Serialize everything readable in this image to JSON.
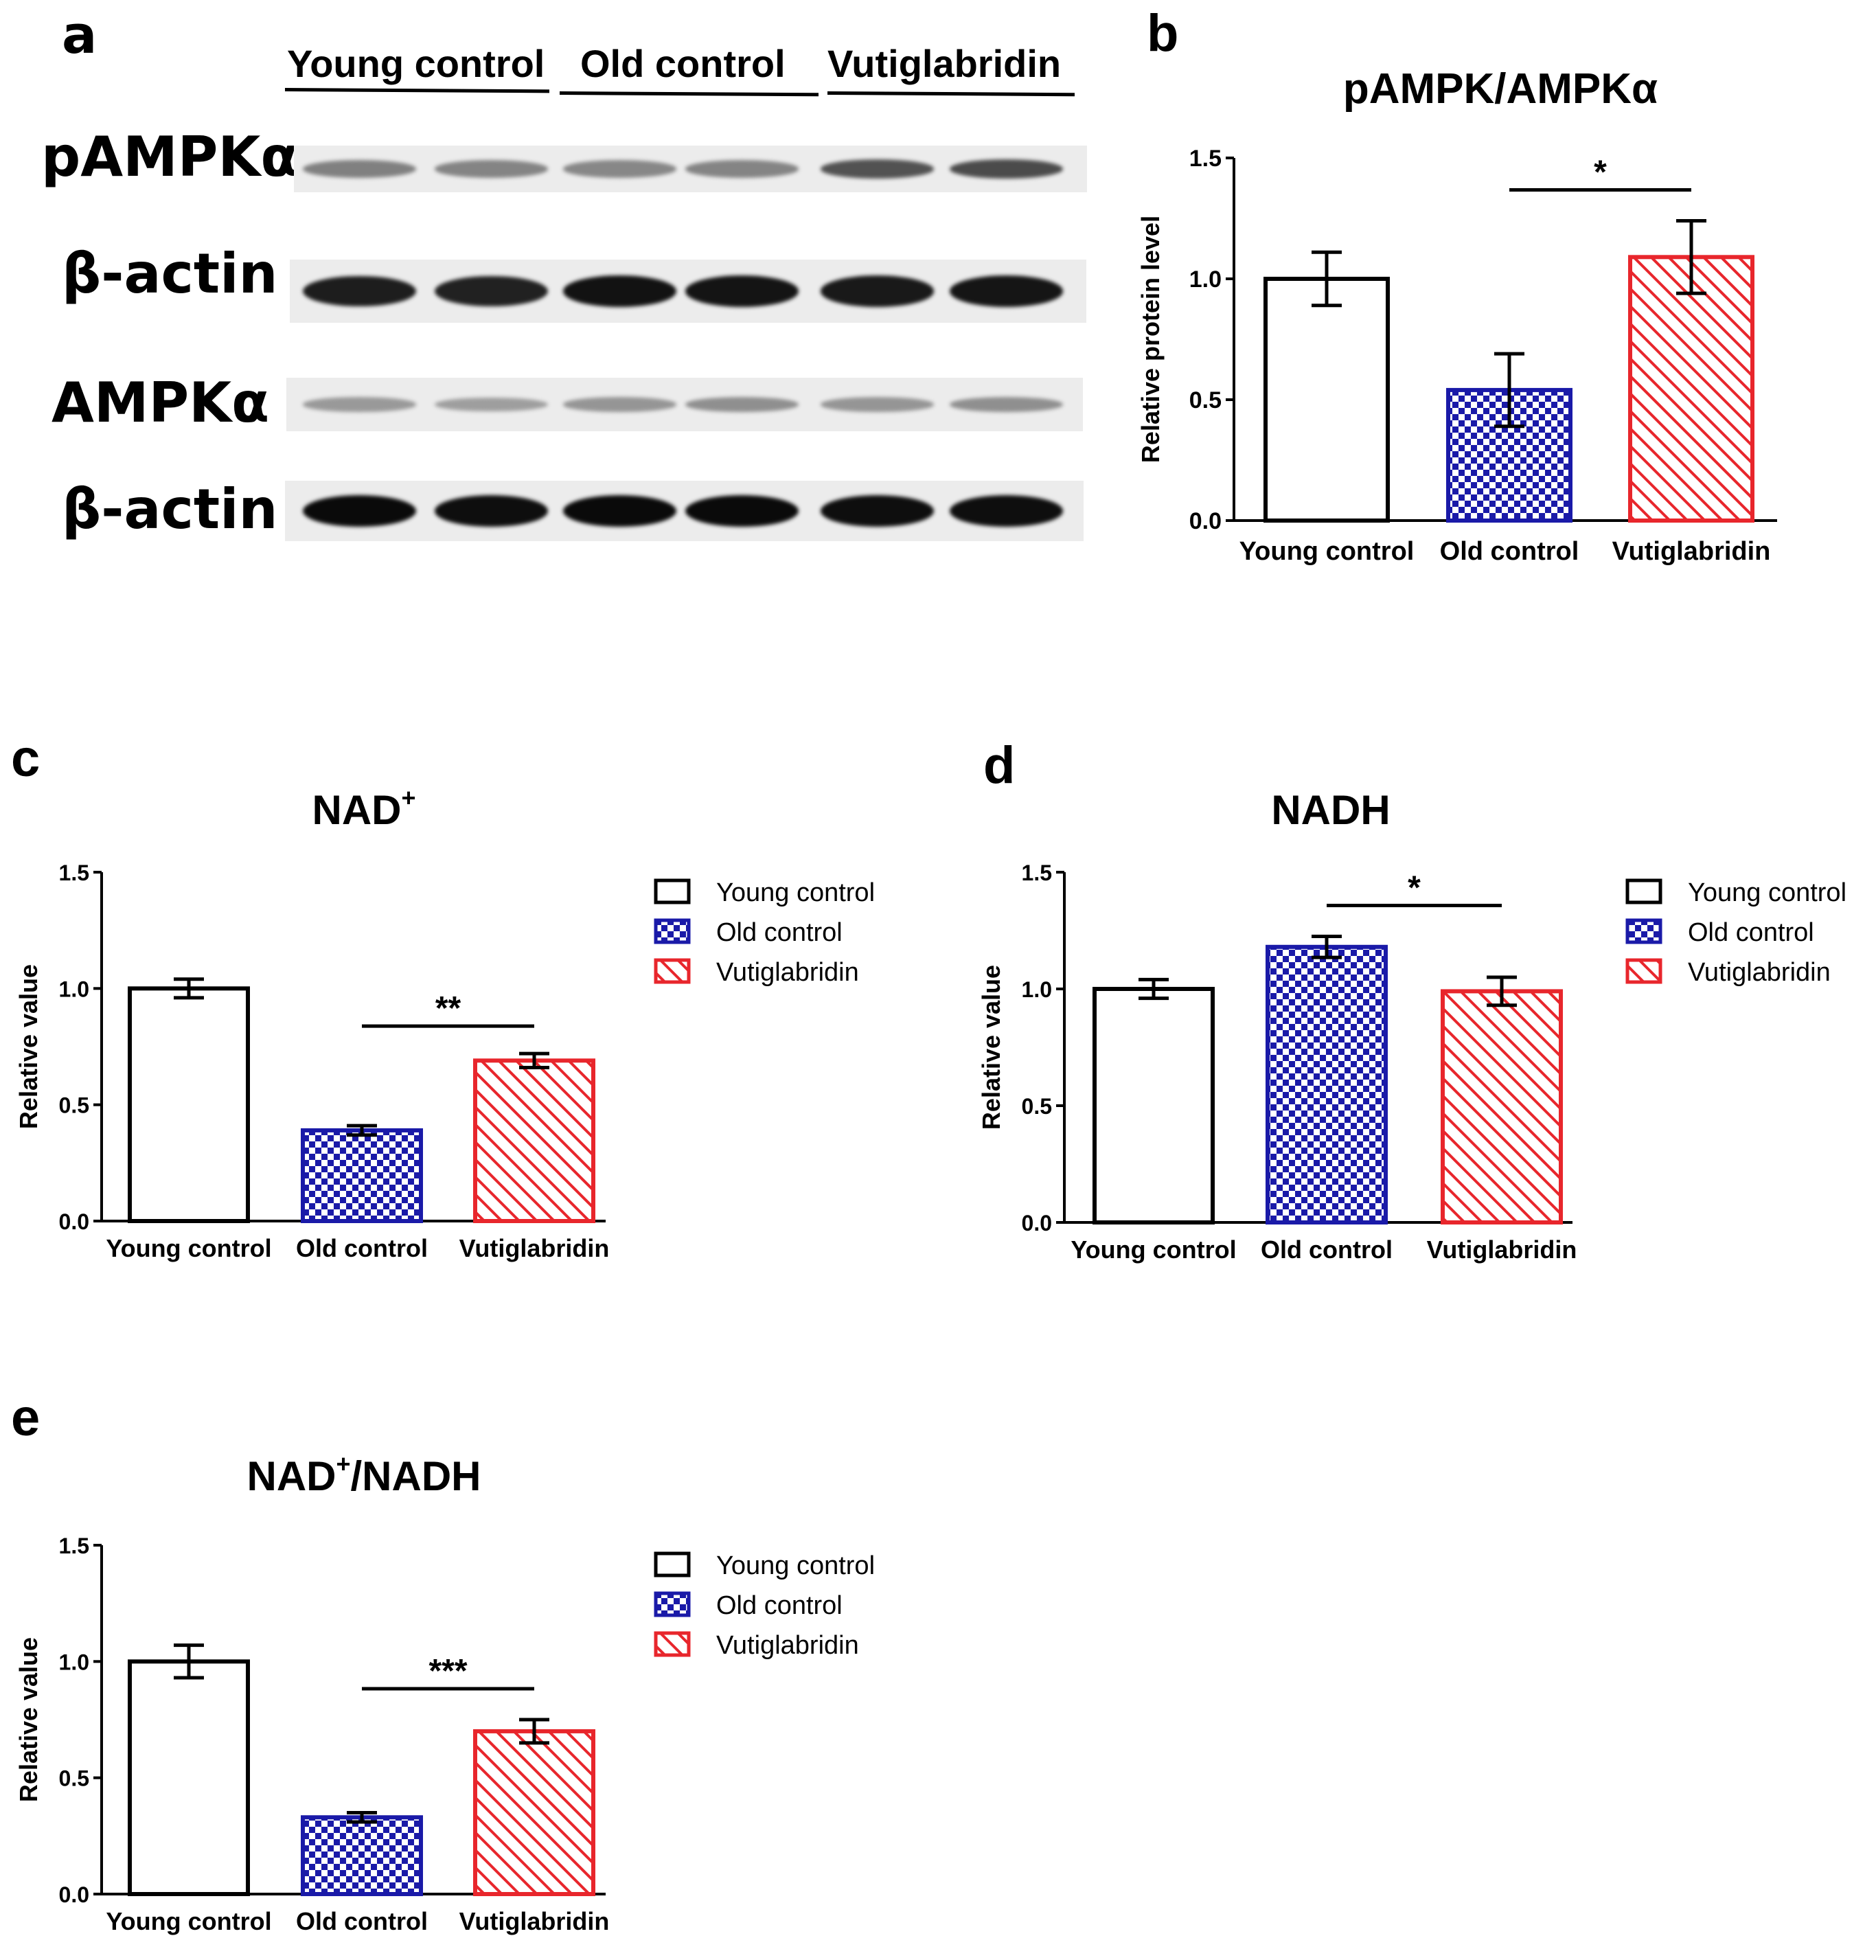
{
  "blot": {
    "panel_letter": "a",
    "groups": [
      "Young control",
      "Old control",
      "Vutiglabridin"
    ],
    "rows": [
      {
        "label": "pAMPKα",
        "intensity": [
          0.38,
          0.36,
          0.34,
          0.36,
          0.62,
          0.66
        ]
      },
      {
        "label": "β-actin",
        "intensity": [
          0.9,
          0.88,
          0.96,
          0.95,
          0.92,
          0.94
        ]
      },
      {
        "label": "AMPKα",
        "intensity": [
          0.25,
          0.22,
          0.27,
          0.3,
          0.27,
          0.3
        ]
      },
      {
        "label": "β-actin",
        "intensity": [
          1.0,
          0.98,
          1.0,
          1.0,
          0.98,
          0.98
        ]
      }
    ]
  },
  "colors": {
    "young": "#000000",
    "old": "#1a1aa8",
    "vuti": "#e8262c"
  },
  "legend": {
    "items": [
      "Young control",
      "Old control",
      "Vutiglabridin"
    ]
  },
  "chart_data": [
    {
      "panel": "b",
      "type": "bar",
      "title": "pAMPK/AMPKα",
      "title_sup": "",
      "title_suffix": "",
      "xlabel": "",
      "ylabel": "Relative protein level",
      "categories": [
        "Young control",
        "Old control",
        "Vutiglabridin"
      ],
      "values": [
        1.0,
        0.54,
        1.09
      ],
      "errors": [
        0.11,
        0.15,
        0.15
      ],
      "ylim": [
        0,
        1.5
      ],
      "yticks": [
        "0.0",
        "0.5",
        "1.0",
        "1.5"
      ],
      "significance": [
        {
          "from": 1,
          "to": 2,
          "label": "*"
        }
      ],
      "legend": false
    },
    {
      "panel": "c",
      "type": "bar",
      "title": "NAD",
      "title_sup": "+",
      "title_suffix": "",
      "xlabel": "",
      "ylabel": "Relative value",
      "categories": [
        "Young control",
        "Old control",
        "Vutiglabridin"
      ],
      "values": [
        1.0,
        0.39,
        0.69
      ],
      "errors": [
        0.04,
        0.02,
        0.03
      ],
      "ylim": [
        0,
        1.5
      ],
      "yticks": [
        "0.0",
        "0.5",
        "1.0",
        "1.5"
      ],
      "significance": [
        {
          "from": 1,
          "to": 2,
          "label": "**"
        }
      ],
      "legend": true
    },
    {
      "panel": "d",
      "type": "bar",
      "title": "NADH",
      "title_sup": "",
      "title_suffix": "",
      "xlabel": "",
      "ylabel": "Relative value",
      "categories": [
        "Young control",
        "Old control",
        "Vutiglabridin"
      ],
      "values": [
        1.0,
        1.18,
        0.99
      ],
      "errors": [
        0.04,
        0.045,
        0.06
      ],
      "ylim": [
        0,
        1.5
      ],
      "yticks": [
        "0.0",
        "0.5",
        "1.0",
        "1.5"
      ],
      "significance": [
        {
          "from": 1,
          "to": 2,
          "label": "*"
        }
      ],
      "legend": true
    },
    {
      "panel": "e",
      "type": "bar",
      "title": "NAD",
      "title_sup": "+",
      "title_suffix": "/NADH",
      "xlabel": "",
      "ylabel": "Relative value",
      "categories": [
        "Young control",
        "Old control",
        "Vutiglabridin"
      ],
      "values": [
        1.0,
        0.33,
        0.7
      ],
      "errors": [
        0.07,
        0.02,
        0.05
      ],
      "ylim": [
        0,
        1.5
      ],
      "yticks": [
        "0.0",
        "0.5",
        "1.0",
        "1.5"
      ],
      "significance": [
        {
          "from": 1,
          "to": 2,
          "label": "***"
        }
      ],
      "legend": true
    }
  ]
}
